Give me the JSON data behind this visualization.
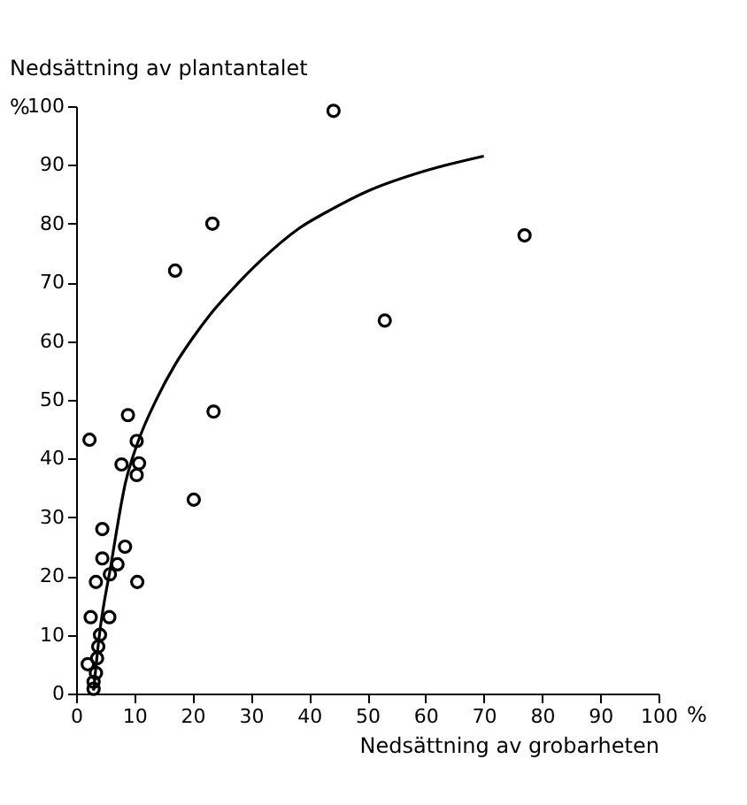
{
  "chart_data": {
    "type": "scatter",
    "xlabel": "Nedsättning av grobarheten",
    "ylabel": "Nedsättning av plantantalet\n%",
    "annotations": [
      "%"
    ],
    "xlim": [
      0,
      100
    ],
    "ylim": [
      0,
      100
    ],
    "xticks": [
      0,
      10,
      20,
      30,
      40,
      50,
      60,
      70,
      80,
      90,
      100
    ],
    "yticks": [
      0,
      10,
      20,
      30,
      40,
      50,
      60,
      70,
      80,
      90,
      100
    ],
    "grid": false,
    "marker": "circle",
    "series": [
      {
        "color": "#000000",
        "x": [
          44.2,
          23.4,
          17,
          77,
          53,
          23.6,
          20.2,
          8.9,
          2.3,
          10.4,
          7.8,
          10.8,
          10.4,
          4.5,
          8.4,
          4.5,
          7.1,
          5.8,
          3.4,
          10.5,
          2.5,
          5.7,
          4.1,
          3.8,
          3.6,
          2,
          3.4,
          3,
          3
        ],
        "values": [
          99.2,
          80,
          72,
          78,
          63.5,
          48,
          33,
          47.4,
          43.2,
          43,
          39,
          39.2,
          37.2,
          28,
          25,
          23,
          22,
          20.3,
          19,
          19,
          13,
          13,
          10,
          8,
          6,
          5,
          3.5,
          2,
          0.8
        ]
      },
      {
        "type": "line",
        "color": "#000000",
        "line_style": "solid",
        "marker": "none",
        "x": [
          3,
          4,
          6,
          8.5,
          10.5,
          14,
          17,
          20,
          23,
          27,
          32,
          38,
          44,
          50,
          60,
          70
        ],
        "values": [
          0.5,
          10,
          22,
          36,
          42.5,
          50.5,
          56,
          60.5,
          64.5,
          69,
          74,
          79,
          82.5,
          85.5,
          89,
          91.5
        ]
      }
    ]
  }
}
